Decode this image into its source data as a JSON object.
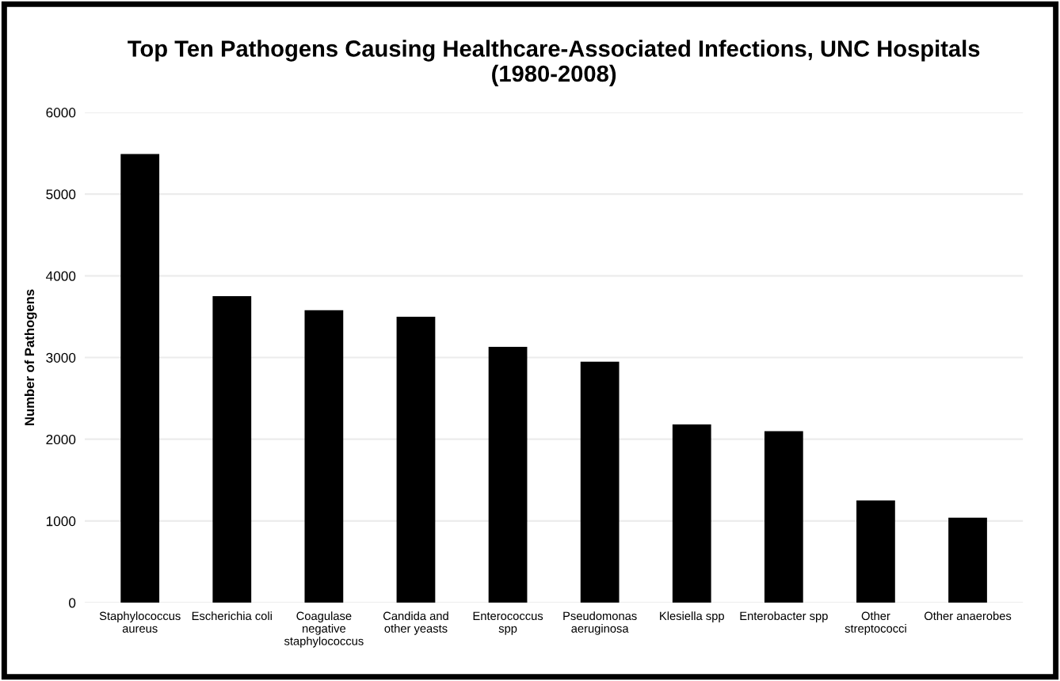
{
  "chart_data": {
    "type": "bar",
    "title": "Top Ten Pathogens Causing Healthcare-Associated Infections, UNC Hospitals\n(1980-2008)",
    "ylabel": "Number of Pathogens",
    "categories": [
      "Staphylococcus\naureus",
      "Escherichia coli",
      "Coagulase\nnegative\nstaphylococcus",
      "Candida and\nother yeasts",
      "Enterococcus\nspp",
      "Pseudomonas\naeruginosa",
      "Klesiella spp",
      "Enterobacter spp",
      "Other\nstreptococci",
      "Other anaerobes"
    ],
    "values": [
      5490,
      3750,
      3580,
      3500,
      3130,
      2950,
      2180,
      2100,
      1250,
      1040
    ],
    "color": "#000000",
    "ylim": [
      0,
      6000
    ],
    "yticks": [
      0,
      1000,
      2000,
      3000,
      4000,
      5000,
      6000
    ],
    "grid": "y"
  }
}
